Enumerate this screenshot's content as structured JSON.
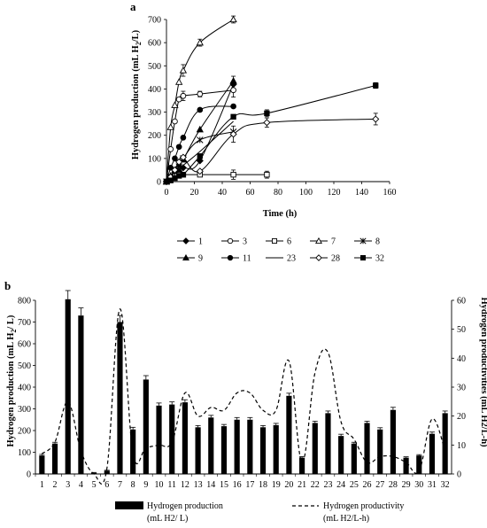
{
  "chart_data": [
    {
      "type": "line",
      "panel_label": "a",
      "xlabel": "Time (h)",
      "ylabel": "Hydrogen production (mL H",
      "ylabel_sub": "2",
      "ylabel_tail": "/L)",
      "xlim": [
        0,
        160
      ],
      "ylim": [
        0,
        700
      ],
      "xticks": [
        "0",
        "20",
        "40",
        "60",
        "80",
        "100",
        "120",
        "140",
        "160"
      ],
      "yticks": [
        "0",
        "100",
        "200",
        "300",
        "400",
        "500",
        "600",
        "700"
      ],
      "legend_position": "bottom",
      "series": [
        {
          "name": "1",
          "marker": "diamond",
          "points": [
            [
              0,
              0
            ],
            [
              3,
              10
            ],
            [
              6,
              25
            ],
            [
              9,
              45
            ],
            [
              12,
              60
            ],
            [
              24,
              90
            ],
            [
              48,
              420
            ]
          ]
        },
        {
          "name": "3",
          "marker": "circle-open",
          "points": [
            [
              0,
              0
            ],
            [
              3,
              140
            ],
            [
              6,
              260
            ],
            [
              9,
              355
            ],
            [
              12,
              370
            ],
            [
              24,
              378
            ],
            [
              48,
              395
            ]
          ]
        },
        {
          "name": "6",
          "marker": "square-open",
          "points": [
            [
              0,
              0
            ],
            [
              3,
              15
            ],
            [
              6,
              25
            ],
            [
              9,
              30
            ],
            [
              12,
              30
            ],
            [
              24,
              30
            ],
            [
              48,
              30
            ],
            [
              72,
              30
            ]
          ]
        },
        {
          "name": "7",
          "marker": "triangle-open",
          "points": [
            [
              0,
              0
            ],
            [
              3,
              235
            ],
            [
              6,
              330
            ],
            [
              9,
              430
            ],
            [
              12,
              480
            ],
            [
              24,
              600
            ],
            [
              48,
              700
            ]
          ]
        },
        {
          "name": "8",
          "marker": "star",
          "points": [
            [
              0,
              0
            ],
            [
              3,
              20
            ],
            [
              6,
              40
            ],
            [
              9,
              65
            ],
            [
              12,
              100
            ],
            [
              24,
              180
            ],
            [
              48,
              215
            ]
          ]
        },
        {
          "name": "9",
          "marker": "triangle",
          "points": [
            [
              0,
              0
            ],
            [
              3,
              25
            ],
            [
              6,
              50
            ],
            [
              9,
              75
            ],
            [
              12,
              95
            ],
            [
              24,
              225
            ],
            [
              48,
              435
            ]
          ]
        },
        {
          "name": "11",
          "marker": "circle",
          "points": [
            [
              0,
              0
            ],
            [
              3,
              60
            ],
            [
              6,
              100
            ],
            [
              9,
              150
            ],
            [
              12,
              190
            ],
            [
              24,
              310
            ],
            [
              48,
              325
            ]
          ]
        },
        {
          "name": "23",
          "marker": "none",
          "points": [
            [
              0,
              0
            ],
            [
              3,
              10
            ],
            [
              6,
              25
            ],
            [
              9,
              50
            ],
            [
              12,
              70
            ],
            [
              24,
              130
            ],
            [
              48,
              260
            ]
          ]
        },
        {
          "name": "28",
          "marker": "diamond-open",
          "points": [
            [
              0,
              0
            ],
            [
              3,
              20
            ],
            [
              6,
              50
            ],
            [
              9,
              85
            ],
            [
              12,
              105
            ],
            [
              24,
              45
            ],
            [
              48,
              205
            ],
            [
              72,
              255
            ],
            [
              150,
              270
            ]
          ]
        },
        {
          "name": "32",
          "marker": "square",
          "points": [
            [
              0,
              0
            ],
            [
              3,
              5
            ],
            [
              6,
              15
            ],
            [
              9,
              25
            ],
            [
              12,
              30
            ],
            [
              24,
              110
            ],
            [
              48,
              280
            ],
            [
              72,
              295
            ],
            [
              150,
              415
            ]
          ]
        }
      ],
      "error_bars": [
        {
          "series": "7",
          "x": 12,
          "y": 480,
          "err": 25
        },
        {
          "series": "7",
          "x": 24,
          "y": 600,
          "err": 15
        },
        {
          "series": "7",
          "x": 48,
          "y": 700,
          "err": 15
        },
        {
          "series": "3",
          "x": 12,
          "y": 370,
          "err": 20
        },
        {
          "series": "3",
          "x": 24,
          "y": 378,
          "err": 12
        },
        {
          "series": "3",
          "x": 48,
          "y": 395,
          "err": 30
        },
        {
          "series": "9",
          "x": 48,
          "y": 435,
          "err": 20
        },
        {
          "series": "6",
          "x": 48,
          "y": 30,
          "err": 20
        },
        {
          "series": "6",
          "x": 72,
          "y": 30,
          "err": 15
        },
        {
          "series": "28",
          "x": 48,
          "y": 205,
          "err": 35
        },
        {
          "series": "28",
          "x": 72,
          "y": 255,
          "err": 20
        },
        {
          "series": "28",
          "x": 150,
          "y": 270,
          "err": 25
        },
        {
          "series": "32",
          "x": 72,
          "y": 295,
          "err": 15
        },
        {
          "series": "32",
          "x": 150,
          "y": 415,
          "err": 12
        }
      ]
    },
    {
      "type": "bar",
      "panel_label": "b",
      "ylabel": "Hydrogen production  (mL H",
      "ylabel_sub": "2",
      "ylabel_tail": "/ L)",
      "y2label": "Hydrogen productivities  (mL H2/L-h)",
      "ylim": [
        0,
        800
      ],
      "y2lim": [
        0,
        60
      ],
      "yticks": [
        "0",
        "100",
        "200",
        "300",
        "400",
        "500",
        "600",
        "700",
        "800"
      ],
      "y2ticks": [
        "0",
        "10",
        "20",
        "30",
        "40",
        "50",
        "60"
      ],
      "categories": [
        "1",
        "2",
        "3",
        "4",
        "5",
        "6",
        "7",
        "8",
        "9",
        "10",
        "11",
        "12",
        "13",
        "14",
        "15",
        "16",
        "17",
        "18",
        "19",
        "20",
        "21",
        "22",
        "23",
        "24",
        "25",
        "26",
        "27",
        "28",
        "29",
        "30",
        "31",
        "32"
      ],
      "legend_position": "bottom",
      "series": [
        {
          "name": "Hydrogen production",
          "unit": "(mL H2/ L)",
          "kind": "bar",
          "values": [
            85,
            140,
            805,
            730,
            5,
            15,
            700,
            205,
            435,
            315,
            320,
            330,
            215,
            260,
            220,
            250,
            250,
            215,
            225,
            360,
            75,
            235,
            280,
            175,
            140,
            235,
            205,
            295,
            75,
            85,
            185,
            280
          ],
          "errors": [
            5,
            6,
            40,
            35,
            2,
            2,
            30,
            10,
            18,
            12,
            12,
            12,
            8,
            10,
            8,
            10,
            10,
            8,
            8,
            12,
            5,
            8,
            10,
            8,
            6,
            8,
            8,
            12,
            4,
            4,
            8,
            10
          ]
        },
        {
          "name": "Hydrogen productivity",
          "unit": "(mL H2/L-h)",
          "kind": "line",
          "values": [
            7,
            11,
            25,
            8,
            0,
            2,
            57,
            7,
            9,
            10,
            11,
            28,
            20,
            23,
            22,
            28,
            28,
            22,
            22,
            39,
            4,
            35,
            42,
            18,
            12,
            4,
            6,
            6,
            4,
            1,
            19,
            8
          ]
        }
      ]
    }
  ]
}
